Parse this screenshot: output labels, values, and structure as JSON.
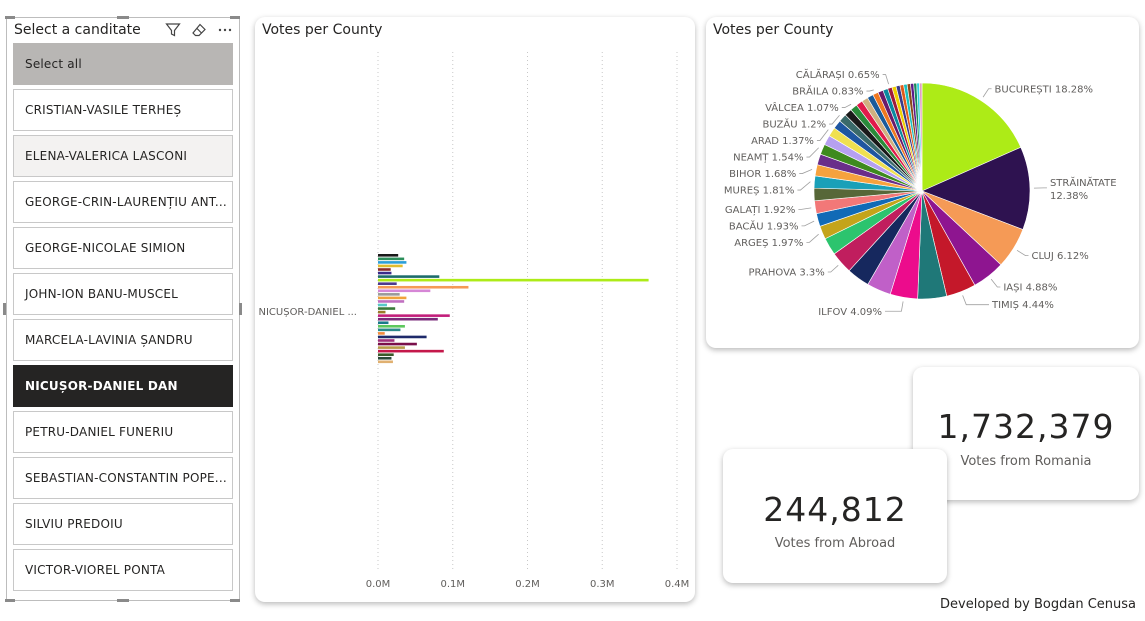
{
  "slicer": {
    "title": "Select a canditate",
    "items": [
      {
        "label": "Select all",
        "state": "select-all"
      },
      {
        "label": "CRISTIAN-VASILE TERHEȘ",
        "state": "normal"
      },
      {
        "label": "ELENA-VALERICA LASCONI",
        "state": "hover"
      },
      {
        "label": "GEORGE-CRIN-LAURENȚIU ANT...",
        "state": "normal"
      },
      {
        "label": "GEORGE-NICOLAE SIMION",
        "state": "normal"
      },
      {
        "label": "JOHN-ION BANU-MUSCEL",
        "state": "normal"
      },
      {
        "label": "MARCELA-LAVINIA ȘANDRU",
        "state": "normal"
      },
      {
        "label": "NICUȘOR-DANIEL DAN",
        "state": "selected"
      },
      {
        "label": "PETRU-DANIEL FUNERIU",
        "state": "normal"
      },
      {
        "label": "SEBASTIAN-CONSTANTIN POPE...",
        "state": "normal"
      },
      {
        "label": "SILVIU PREDOIU",
        "state": "normal"
      },
      {
        "label": "VICTOR-VIOREL PONTA",
        "state": "normal"
      }
    ],
    "icons": [
      "filter-icon",
      "eraser-icon",
      "more-options-icon"
    ]
  },
  "bar_chart_title": "Votes per County",
  "pie_chart_title": "Votes per County",
  "kpi_romania": {
    "value": "1,732,379",
    "label": "Votes from Romania"
  },
  "kpi_abroad": {
    "value": "244,812",
    "label": "Votes from Abroad"
  },
  "footer": "Developed by Bogdan Cenusa",
  "chart_data": [
    {
      "type": "bar",
      "orientation": "horizontal",
      "title": "Votes per County",
      "category": "NICUȘOR-DANIEL ...",
      "xlim": [
        0,
        400000
      ],
      "x_ticks": [
        "0.0M",
        "0.1M",
        "0.2M",
        "0.3M",
        "0.4M"
      ],
      "grid": true,
      "series": [
        {
          "color": "#1a1a1a",
          "value": 27000
        },
        {
          "color": "#2c8f5b",
          "value": 35000
        },
        {
          "color": "#2b9fd9",
          "value": 38000
        },
        {
          "color": "#e0bd2f",
          "value": 33000
        },
        {
          "color": "#8b2c2c",
          "value": 17000
        },
        {
          "color": "#3a2b8a",
          "value": 18000
        },
        {
          "color": "#1d6b6b",
          "value": 82000
        },
        {
          "color": "#adeb17",
          "value": 362000
        },
        {
          "color": "#4e3a8e",
          "value": 25000
        },
        {
          "color": "#f59a56",
          "value": 121000
        },
        {
          "color": "#d687d6",
          "value": 70000
        },
        {
          "color": "#9a9a9a",
          "value": 29000
        },
        {
          "color": "#f0a33c",
          "value": 38000
        },
        {
          "color": "#c070c0",
          "value": 35000
        },
        {
          "color": "#58c8c8",
          "value": 12000
        },
        {
          "color": "#3a7a3a",
          "value": 23000
        },
        {
          "color": "#9a7a2a",
          "value": 10000
        },
        {
          "color": "#c21f7b",
          "value": 96000
        },
        {
          "color": "#7a2a7a",
          "value": 80000
        },
        {
          "color": "#1a7a8a",
          "value": 14000
        },
        {
          "color": "#5ec85e",
          "value": 36000
        },
        {
          "color": "#2a8a8a",
          "value": 30000
        },
        {
          "color": "#f28a3c",
          "value": 9000
        },
        {
          "color": "#1e2a6a",
          "value": 65000
        },
        {
          "color": "#a0307a",
          "value": 22000
        },
        {
          "color": "#7a0f4a",
          "value": 52000
        },
        {
          "color": "#b89a4a",
          "value": 36000
        },
        {
          "color": "#c4184a",
          "value": 88000
        },
        {
          "color": "#3a5a2a",
          "value": 21000
        },
        {
          "color": "#2a4a3a",
          "value": 18000
        },
        {
          "color": "#e0b070",
          "value": 20000
        }
      ]
    },
    {
      "type": "pie",
      "title": "Votes per County",
      "slices": [
        {
          "label": "BUCUREȘTI",
          "value": 18.28,
          "color": "#adeb17"
        },
        {
          "label": "STRĂINĂTATE",
          "value": 12.38,
          "color": "#2e1250"
        },
        {
          "label": "CLUJ",
          "value": 6.12,
          "color": "#f59a56"
        },
        {
          "label": "IAȘI",
          "value": 4.88,
          "color": "#8e1590"
        },
        {
          "label": "TIMIȘ",
          "value": 4.44,
          "color": "#c4182a"
        },
        {
          "label": "",
          "value": 4.3,
          "color": "#1f7878"
        },
        {
          "label": "ILFOV",
          "value": 4.09,
          "color": "#ec0c8c"
        },
        {
          "label": "",
          "value": 3.6,
          "color": "#c060c8"
        },
        {
          "label": "",
          "value": 3.4,
          "color": "#16285e"
        },
        {
          "label": "PRAHOVA",
          "value": 3.3,
          "color": "#c01e5e"
        },
        {
          "label": "",
          "value": 2.6,
          "color": "#2cc46e"
        },
        {
          "label": "ARGEȘ",
          "value": 1.97,
          "color": "#c4a41a"
        },
        {
          "label": "BACĂU",
          "value": 1.93,
          "color": "#116ab6"
        },
        {
          "label": "GALAȚI",
          "value": 1.92,
          "color": "#f27878"
        },
        {
          "label": "",
          "value": 1.85,
          "color": "#576738"
        },
        {
          "label": "MUREȘ",
          "value": 1.81,
          "color": "#1aa0b8"
        },
        {
          "label": "BIHOR",
          "value": 1.68,
          "color": "#f6a23e"
        },
        {
          "label": "",
          "value": 1.6,
          "color": "#6a2e8a"
        },
        {
          "label": "NEAMȚ",
          "value": 1.54,
          "color": "#3e8a1e"
        },
        {
          "label": "",
          "value": 1.45,
          "color": "#b6a0f0"
        },
        {
          "label": "ARAD",
          "value": 1.37,
          "color": "#f0e050"
        },
        {
          "label": "",
          "value": 1.3,
          "color": "#1e56a0"
        },
        {
          "label": "BUZĂU",
          "value": 1.2,
          "color": "#3a6a6a"
        },
        {
          "label": "",
          "value": 1.12,
          "color": "#1a1a1a"
        },
        {
          "label": "VÂLCEA",
          "value": 1.07,
          "color": "#2a8a3a"
        },
        {
          "label": "",
          "value": 1.0,
          "color": "#e01a4a"
        },
        {
          "label": "",
          "value": 0.95,
          "color": "#d0b080"
        },
        {
          "label": "",
          "value": 0.9,
          "color": "#1a5a9a"
        },
        {
          "label": "BRĂILA",
          "value": 0.83,
          "color": "#f07820"
        },
        {
          "label": "",
          "value": 0.78,
          "color": "#6a1a6a"
        },
        {
          "label": "",
          "value": 0.74,
          "color": "#0a8aa0"
        },
        {
          "label": "CĂLĂRAȘI",
          "value": 0.65,
          "color": "#a01a3a"
        },
        {
          "label": "",
          "value": 0.62,
          "color": "#f0d000"
        },
        {
          "label": "",
          "value": 0.58,
          "color": "#3a3a8a"
        },
        {
          "label": "",
          "value": 0.55,
          "color": "#e05a1a"
        },
        {
          "label": "",
          "value": 0.52,
          "color": "#1ac0c0"
        },
        {
          "label": "",
          "value": 0.5,
          "color": "#8a4a1a"
        },
        {
          "label": "",
          "value": 0.47,
          "color": "#5a1a8a"
        },
        {
          "label": "",
          "value": 0.45,
          "color": "#1a8a5a"
        },
        {
          "label": "",
          "value": 0.4,
          "color": "#30d0e0"
        },
        {
          "label": "",
          "value": 0.38,
          "color": "#e0a0c0"
        }
      ]
    }
  ]
}
